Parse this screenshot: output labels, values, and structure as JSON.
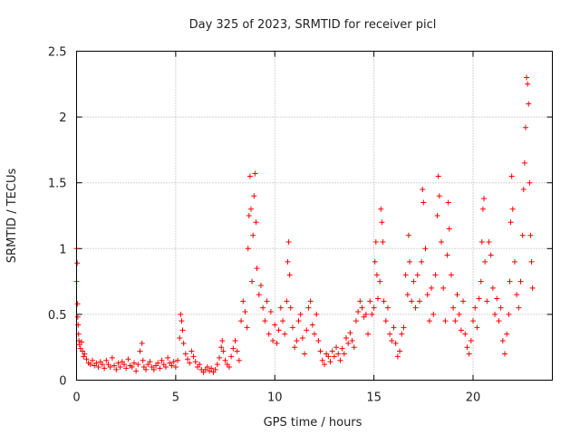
{
  "chart_data": {
    "type": "scatter",
    "title": "Day 325 of 2023, SRMTID for receiver picl",
    "xlabel": "GPS time / hours",
    "ylabel": "SRMTID / TECUs",
    "xlim": [
      0,
      24
    ],
    "ylim": [
      0,
      2.5
    ],
    "x_ticks": [
      0,
      5,
      10,
      15,
      20
    ],
    "x_tick_labels": [
      "0",
      "5",
      "10",
      "15",
      "20"
    ],
    "y_ticks": [
      0,
      0.5,
      1,
      1.5,
      2,
      2.5
    ],
    "y_tick_labels": [
      "0",
      "0.5",
      "1",
      "1.5",
      "2",
      "2.5"
    ],
    "grid": true,
    "marker": "+",
    "point_color": "#ff0000",
    "series": [
      {
        "name": "SRMTID",
        "points": [
          [
            0.0,
            1.0
          ],
          [
            0.0,
            0.75
          ],
          [
            0.03,
            0.89
          ],
          [
            0.05,
            0.58
          ],
          [
            0.06,
            0.48
          ],
          [
            0.08,
            0.42
          ],
          [
            0.1,
            0.35
          ],
          [
            0.12,
            0.3
          ],
          [
            0.15,
            0.27
          ],
          [
            0.2,
            0.24
          ],
          [
            0.25,
            0.29
          ],
          [
            0.3,
            0.22
          ],
          [
            0.35,
            0.18
          ],
          [
            0.4,
            0.2
          ],
          [
            0.5,
            0.16
          ],
          [
            0.6,
            0.13
          ],
          [
            0.7,
            0.12
          ],
          [
            0.8,
            0.15
          ],
          [
            0.9,
            0.11
          ],
          [
            1.0,
            0.13
          ],
          [
            1.1,
            0.1
          ],
          [
            1.2,
            0.14
          ],
          [
            1.3,
            0.12
          ],
          [
            1.4,
            0.09
          ],
          [
            1.5,
            0.15
          ],
          [
            1.6,
            0.12
          ],
          [
            1.7,
            0.1
          ],
          [
            1.8,
            0.17
          ],
          [
            1.9,
            0.11
          ],
          [
            2.0,
            0.08
          ],
          [
            2.1,
            0.13
          ],
          [
            2.2,
            0.1
          ],
          [
            2.3,
            0.14
          ],
          [
            2.4,
            0.12
          ],
          [
            2.5,
            0.09
          ],
          [
            2.6,
            0.16
          ],
          [
            2.7,
            0.11
          ],
          [
            2.8,
            0.1
          ],
          [
            2.9,
            0.13
          ],
          [
            3.0,
            0.07
          ],
          [
            3.1,
            0.12
          ],
          [
            3.2,
            0.22
          ],
          [
            3.3,
            0.28
          ],
          [
            3.35,
            0.15
          ],
          [
            3.4,
            0.1
          ],
          [
            3.5,
            0.08
          ],
          [
            3.6,
            0.12
          ],
          [
            3.7,
            0.14
          ],
          [
            3.8,
            0.1
          ],
          [
            3.9,
            0.08
          ],
          [
            4.0,
            0.11
          ],
          [
            4.1,
            0.13
          ],
          [
            4.2,
            0.09
          ],
          [
            4.3,
            0.15
          ],
          [
            4.4,
            0.12
          ],
          [
            4.5,
            0.1
          ],
          [
            4.6,
            0.17
          ],
          [
            4.7,
            0.13
          ],
          [
            4.8,
            0.11
          ],
          [
            4.9,
            0.14
          ],
          [
            5.0,
            0.1
          ],
          [
            5.1,
            0.15
          ],
          [
            5.2,
            0.32
          ],
          [
            5.25,
            0.5
          ],
          [
            5.3,
            0.45
          ],
          [
            5.35,
            0.38
          ],
          [
            5.4,
            0.28
          ],
          [
            5.5,
            0.2
          ],
          [
            5.6,
            0.16
          ],
          [
            5.7,
            0.13
          ],
          [
            5.8,
            0.22
          ],
          [
            5.9,
            0.18
          ],
          [
            6.0,
            0.14
          ],
          [
            6.1,
            0.1
          ],
          [
            6.2,
            0.12
          ],
          [
            6.3,
            0.08
          ],
          [
            6.4,
            0.06
          ],
          [
            6.5,
            0.08
          ],
          [
            6.6,
            0.1
          ],
          [
            6.7,
            0.07
          ],
          [
            6.8,
            0.09
          ],
          [
            6.9,
            0.06
          ],
          [
            7.0,
            0.08
          ],
          [
            7.1,
            0.12
          ],
          [
            7.2,
            0.17
          ],
          [
            7.3,
            0.25
          ],
          [
            7.35,
            0.3
          ],
          [
            7.4,
            0.22
          ],
          [
            7.5,
            0.15
          ],
          [
            7.6,
            0.12
          ],
          [
            7.7,
            0.1
          ],
          [
            7.8,
            0.18
          ],
          [
            7.9,
            0.24
          ],
          [
            8.0,
            0.3
          ],
          [
            8.1,
            0.22
          ],
          [
            8.2,
            0.15
          ],
          [
            8.3,
            0.45
          ],
          [
            8.4,
            0.6
          ],
          [
            8.5,
            0.52
          ],
          [
            8.6,
            0.4
          ],
          [
            8.65,
            1.0
          ],
          [
            8.7,
            1.25
          ],
          [
            8.75,
            1.55
          ],
          [
            8.8,
            1.3
          ],
          [
            8.85,
            0.75
          ],
          [
            8.9,
            1.1
          ],
          [
            8.95,
            1.4
          ],
          [
            9.0,
            1.57
          ],
          [
            9.05,
            1.2
          ],
          [
            9.1,
            0.85
          ],
          [
            9.2,
            0.65
          ],
          [
            9.3,
            0.72
          ],
          [
            9.4,
            0.55
          ],
          [
            9.5,
            0.45
          ],
          [
            9.6,
            0.6
          ],
          [
            9.7,
            0.35
          ],
          [
            9.8,
            0.52
          ],
          [
            9.9,
            0.3
          ],
          [
            10.0,
            0.42
          ],
          [
            10.1,
            0.28
          ],
          [
            10.2,
            0.38
          ],
          [
            10.3,
            0.55
          ],
          [
            10.4,
            0.45
          ],
          [
            10.5,
            0.35
          ],
          [
            10.6,
            0.6
          ],
          [
            10.65,
            0.9
          ],
          [
            10.7,
            1.05
          ],
          [
            10.75,
            0.8
          ],
          [
            10.8,
            0.55
          ],
          [
            10.9,
            0.4
          ],
          [
            11.0,
            0.25
          ],
          [
            11.1,
            0.3
          ],
          [
            11.2,
            0.45
          ],
          [
            11.3,
            0.5
          ],
          [
            11.4,
            0.32
          ],
          [
            11.5,
            0.2
          ],
          [
            11.6,
            0.38
          ],
          [
            11.7,
            0.55
          ],
          [
            11.8,
            0.6
          ],
          [
            11.9,
            0.42
          ],
          [
            12.0,
            0.35
          ],
          [
            12.1,
            0.5
          ],
          [
            12.2,
            0.3
          ],
          [
            12.3,
            0.22
          ],
          [
            12.4,
            0.15
          ],
          [
            12.5,
            0.12
          ],
          [
            12.6,
            0.2
          ],
          [
            12.7,
            0.18
          ],
          [
            12.8,
            0.14
          ],
          [
            12.9,
            0.22
          ],
          [
            13.0,
            0.18
          ],
          [
            13.1,
            0.25
          ],
          [
            13.2,
            0.2
          ],
          [
            13.3,
            0.15
          ],
          [
            13.4,
            0.24
          ],
          [
            13.5,
            0.2
          ],
          [
            13.6,
            0.32
          ],
          [
            13.7,
            0.28
          ],
          [
            13.8,
            0.36
          ],
          [
            13.9,
            0.3
          ],
          [
            14.0,
            0.25
          ],
          [
            14.1,
            0.45
          ],
          [
            14.2,
            0.52
          ],
          [
            14.3,
            0.6
          ],
          [
            14.4,
            0.55
          ],
          [
            14.5,
            0.48
          ],
          [
            14.6,
            0.5
          ],
          [
            14.7,
            0.35
          ],
          [
            14.8,
            0.6
          ],
          [
            14.9,
            0.5
          ],
          [
            15.0,
            0.55
          ],
          [
            15.05,
            0.9
          ],
          [
            15.1,
            1.05
          ],
          [
            15.15,
            0.8
          ],
          [
            15.2,
            0.62
          ],
          [
            15.3,
            0.75
          ],
          [
            15.35,
            1.3
          ],
          [
            15.4,
            1.2
          ],
          [
            15.45,
            1.05
          ],
          [
            15.5,
            0.6
          ],
          [
            15.6,
            0.45
          ],
          [
            15.7,
            0.55
          ],
          [
            15.8,
            0.35
          ],
          [
            15.9,
            0.3
          ],
          [
            16.0,
            0.4
          ],
          [
            16.1,
            0.28
          ],
          [
            16.2,
            0.18
          ],
          [
            16.3,
            0.22
          ],
          [
            16.4,
            0.35
          ],
          [
            16.5,
            0.4
          ],
          [
            16.6,
            0.8
          ],
          [
            16.7,
            0.65
          ],
          [
            16.75,
            1.1
          ],
          [
            16.8,
            0.9
          ],
          [
            16.9,
            0.6
          ],
          [
            17.0,
            0.75
          ],
          [
            17.1,
            0.55
          ],
          [
            17.2,
            0.8
          ],
          [
            17.3,
            0.6
          ],
          [
            17.4,
            0.9
          ],
          [
            17.45,
            1.45
          ],
          [
            17.5,
            1.35
          ],
          [
            17.6,
            1.0
          ],
          [
            17.7,
            0.65
          ],
          [
            17.8,
            0.45
          ],
          [
            17.9,
            0.7
          ],
          [
            18.0,
            0.5
          ],
          [
            18.1,
            0.8
          ],
          [
            18.2,
            1.25
          ],
          [
            18.25,
            1.55
          ],
          [
            18.3,
            1.4
          ],
          [
            18.4,
            1.05
          ],
          [
            18.5,
            0.7
          ],
          [
            18.6,
            0.45
          ],
          [
            18.7,
            0.95
          ],
          [
            18.75,
            1.35
          ],
          [
            18.8,
            1.15
          ],
          [
            18.9,
            0.8
          ],
          [
            19.0,
            0.55
          ],
          [
            19.1,
            0.45
          ],
          [
            19.2,
            0.65
          ],
          [
            19.3,
            0.5
          ],
          [
            19.4,
            0.38
          ],
          [
            19.5,
            0.6
          ],
          [
            19.6,
            0.35
          ],
          [
            19.7,
            0.25
          ],
          [
            19.8,
            0.2
          ],
          [
            19.9,
            0.3
          ],
          [
            20.0,
            0.45
          ],
          [
            20.1,
            0.55
          ],
          [
            20.2,
            0.4
          ],
          [
            20.3,
            0.62
          ],
          [
            20.4,
            0.75
          ],
          [
            20.45,
            1.05
          ],
          [
            20.5,
            1.3
          ],
          [
            20.55,
            1.38
          ],
          [
            20.6,
            0.9
          ],
          [
            20.7,
            0.6
          ],
          [
            20.8,
            1.05
          ],
          [
            20.9,
            0.95
          ],
          [
            21.0,
            0.7
          ],
          [
            21.1,
            0.5
          ],
          [
            21.2,
            0.62
          ],
          [
            21.3,
            0.45
          ],
          [
            21.4,
            0.55
          ],
          [
            21.5,
            0.3
          ],
          [
            21.6,
            0.2
          ],
          [
            21.7,
            0.35
          ],
          [
            21.8,
            0.5
          ],
          [
            21.85,
            0.75
          ],
          [
            21.9,
            1.2
          ],
          [
            21.95,
            1.55
          ],
          [
            22.0,
            1.3
          ],
          [
            22.1,
            0.9
          ],
          [
            22.2,
            0.65
          ],
          [
            22.3,
            0.55
          ],
          [
            22.4,
            0.75
          ],
          [
            22.5,
            1.1
          ],
          [
            22.55,
            1.45
          ],
          [
            22.6,
            1.65
          ],
          [
            22.65,
            1.92
          ],
          [
            22.7,
            2.3
          ],
          [
            22.75,
            2.25
          ],
          [
            22.8,
            2.1
          ],
          [
            22.85,
            1.5
          ],
          [
            22.9,
            1.1
          ],
          [
            22.95,
            0.9
          ],
          [
            23.0,
            0.7
          ]
        ]
      }
    ]
  }
}
